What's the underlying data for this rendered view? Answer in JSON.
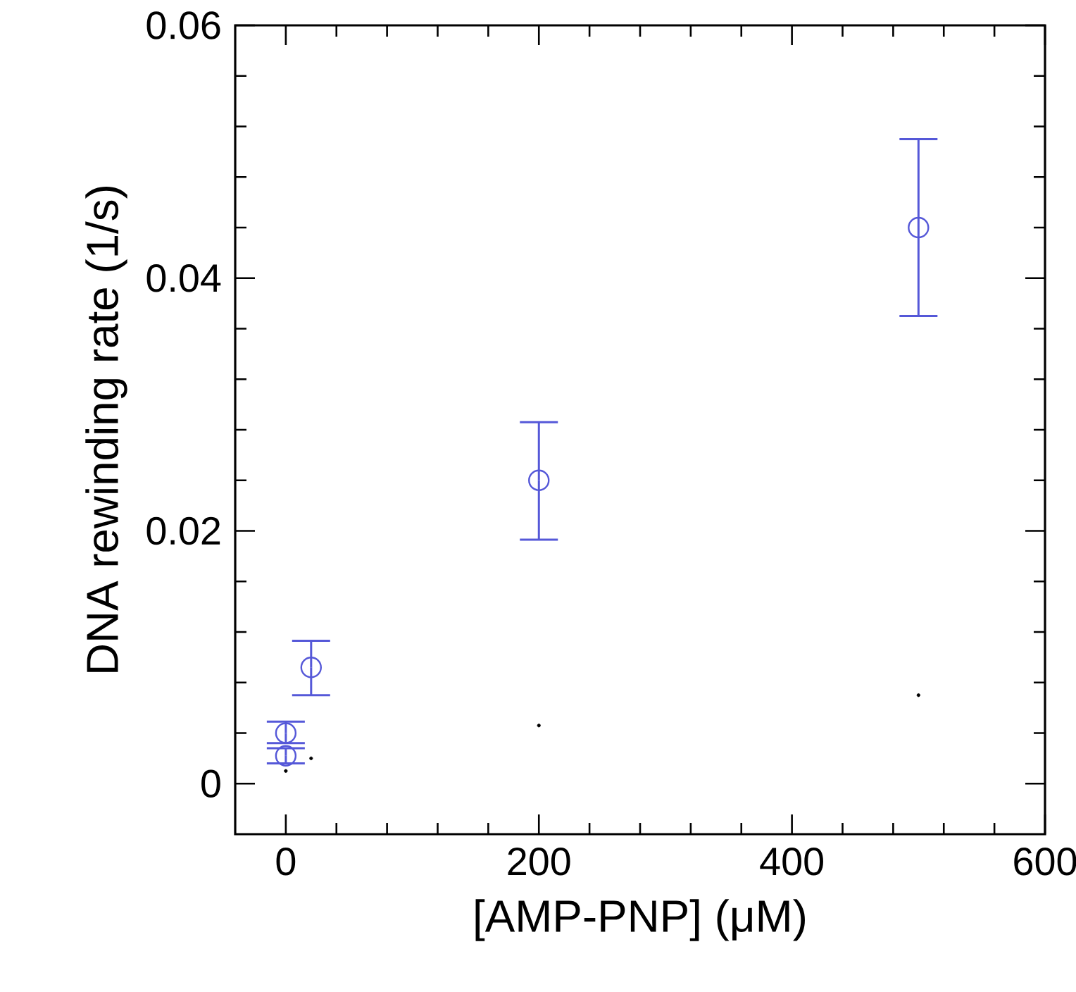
{
  "chart_data": {
    "type": "scatter",
    "xlabel": "[AMP-PNP] (μM)",
    "ylabel": "DNA rewinding rate (1/s)",
    "xlim": [
      -40,
      600
    ],
    "ylim": [
      -0.004,
      0.06
    ],
    "xticks": [
      0,
      200,
      400,
      600
    ],
    "yticks": [
      0,
      0.02,
      0.04,
      0.06
    ],
    "marker": "circle",
    "grid": false,
    "series": [
      {
        "color": "#5558d8",
        "x": [
          0,
          0,
          20,
          200,
          500
        ],
        "values": [
          0.004,
          0.0022,
          0.0092,
          0.024,
          0.044
        ],
        "errors": [
          [
            0.0032,
            0.0049
          ],
          [
            0.0016,
            0.0028
          ],
          [
            0.007,
            0.0113
          ],
          [
            0.0193,
            0.0286
          ],
          [
            0.037,
            0.051
          ]
        ]
      },
      {
        "color": "#000000",
        "x": [
          0,
          20,
          200,
          500
        ],
        "values": [
          0.001,
          0.002,
          0.0046,
          0.007
        ]
      }
    ]
  }
}
